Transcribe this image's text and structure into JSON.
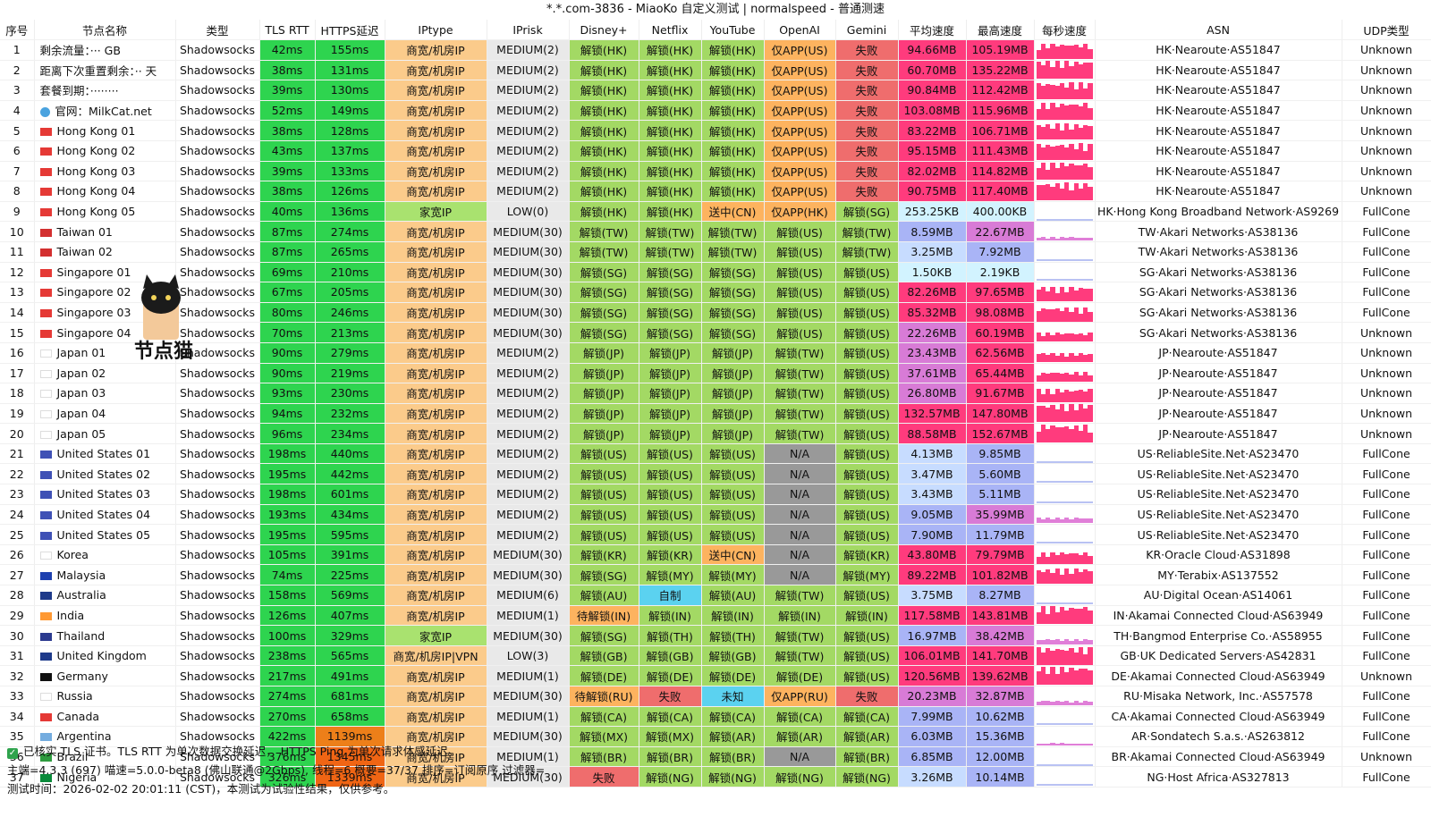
{
  "title": "*.*.com-3836 - MiaoKo 自定义测试 | normalspeed - 普通测速",
  "headers": [
    "序号",
    "节点名称",
    "类型",
    "TLS RTT",
    "HTTPS延迟",
    "IPtype",
    "IPrisk",
    "Disney+",
    "Netflix",
    "YouTube",
    "OpenAI",
    "Gemini",
    "平均速度",
    "最高速度",
    "每秒速度",
    "ASN",
    "UDP类型"
  ],
  "rows": [
    [
      "1",
      "剩余流量：··· GB",
      "Shadowsocks",
      "42ms",
      "155ms",
      "商宽/机房IP",
      "MEDIUM(2)",
      "解锁(HK)",
      "解锁(HK)",
      "解锁(HK)",
      "仅APP(US)",
      "失败",
      "94.66MB",
      "105.19MB",
      "",
      "HK·Nearoute·AS51847",
      "Unknown"
    ],
    [
      "2",
      "距离下次重置剩余：·· 天",
      "Shadowsocks",
      "38ms",
      "131ms",
      "商宽/机房IP",
      "MEDIUM(2)",
      "解锁(HK)",
      "解锁(HK)",
      "解锁(HK)",
      "仅APP(US)",
      "失败",
      "60.70MB",
      "135.22MB",
      "",
      "HK·Nearoute·AS51847",
      "Unknown"
    ],
    [
      "3",
      "套餐到期：········",
      "Shadowsocks",
      "39ms",
      "130ms",
      "商宽/机房IP",
      "MEDIUM(2)",
      "解锁(HK)",
      "解锁(HK)",
      "解锁(HK)",
      "仅APP(US)",
      "失败",
      "90.84MB",
      "112.42MB",
      "",
      "HK·Nearoute·AS51847",
      "Unknown"
    ],
    [
      "4",
      "官网：MilkCat.net",
      "Shadowsocks",
      "52ms",
      "149ms",
      "商宽/机房IP",
      "MEDIUM(2)",
      "解锁(HK)",
      "解锁(HK)",
      "解锁(HK)",
      "仅APP(US)",
      "失败",
      "103.08MB",
      "115.96MB",
      "",
      "HK·Nearoute·AS51847",
      "Unknown"
    ],
    [
      "5",
      "Hong Kong 01",
      "Shadowsocks",
      "38ms",
      "128ms",
      "商宽/机房IP",
      "MEDIUM(2)",
      "解锁(HK)",
      "解锁(HK)",
      "解锁(HK)",
      "仅APP(US)",
      "失败",
      "83.22MB",
      "106.71MB",
      "",
      "HK·Nearoute·AS51847",
      "Unknown"
    ],
    [
      "6",
      "Hong Kong 02",
      "Shadowsocks",
      "43ms",
      "137ms",
      "商宽/机房IP",
      "MEDIUM(2)",
      "解锁(HK)",
      "解锁(HK)",
      "解锁(HK)",
      "仅APP(US)",
      "失败",
      "95.15MB",
      "111.43MB",
      "",
      "HK·Nearoute·AS51847",
      "Unknown"
    ],
    [
      "7",
      "Hong Kong 03",
      "Shadowsocks",
      "39ms",
      "133ms",
      "商宽/机房IP",
      "MEDIUM(2)",
      "解锁(HK)",
      "解锁(HK)",
      "解锁(HK)",
      "仅APP(US)",
      "失败",
      "82.02MB",
      "114.82MB",
      "",
      "HK·Nearoute·AS51847",
      "Unknown"
    ],
    [
      "8",
      "Hong Kong 04",
      "Shadowsocks",
      "38ms",
      "126ms",
      "商宽/机房IP",
      "MEDIUM(2)",
      "解锁(HK)",
      "解锁(HK)",
      "解锁(HK)",
      "仅APP(US)",
      "失败",
      "90.75MB",
      "117.40MB",
      "",
      "HK·Nearoute·AS51847",
      "Unknown"
    ],
    [
      "9",
      "Hong Kong 05",
      "Shadowsocks",
      "40ms",
      "136ms",
      "家宽IP",
      "LOW(0)",
      "解锁(HK)",
      "解锁(HK)",
      "送中(CN)",
      "仅APP(HK)",
      "解锁(SG)",
      "253.25KB",
      "400.00KB",
      "",
      "HK·Hong Kong Broadband Network·AS9269",
      "FullCone"
    ],
    [
      "10",
      "Taiwan 01",
      "Shadowsocks",
      "87ms",
      "274ms",
      "商宽/机房IP",
      "MEDIUM(30)",
      "解锁(TW)",
      "解锁(TW)",
      "解锁(TW)",
      "解锁(US)",
      "解锁(TW)",
      "8.59MB",
      "22.67MB",
      "",
      "TW·Akari Networks·AS38136",
      "FullCone"
    ],
    [
      "11",
      "Taiwan 02",
      "Shadowsocks",
      "87ms",
      "265ms",
      "商宽/机房IP",
      "MEDIUM(30)",
      "解锁(TW)",
      "解锁(TW)",
      "解锁(TW)",
      "解锁(US)",
      "解锁(TW)",
      "3.25MB",
      "7.92MB",
      "",
      "TW·Akari Networks·AS38136",
      "FullCone"
    ],
    [
      "12",
      "Singapore 01",
      "Shadowsocks",
      "69ms",
      "210ms",
      "商宽/机房IP",
      "MEDIUM(30)",
      "解锁(SG)",
      "解锁(SG)",
      "解锁(SG)",
      "解锁(US)",
      "解锁(US)",
      "1.50KB",
      "2.19KB",
      "",
      "SG·Akari Networks·AS38136",
      "FullCone"
    ],
    [
      "13",
      "Singapore 02",
      "Shadowsocks",
      "67ms",
      "205ms",
      "商宽/机房IP",
      "MEDIUM(30)",
      "解锁(SG)",
      "解锁(SG)",
      "解锁(SG)",
      "解锁(US)",
      "解锁(US)",
      "82.26MB",
      "97.65MB",
      "",
      "SG·Akari Networks·AS38136",
      "FullCone"
    ],
    [
      "14",
      "Singapore 03",
      "Shadowsocks",
      "80ms",
      "246ms",
      "商宽/机房IP",
      "MEDIUM(30)",
      "解锁(SG)",
      "解锁(SG)",
      "解锁(SG)",
      "解锁(US)",
      "解锁(US)",
      "85.32MB",
      "98.08MB",
      "",
      "SG·Akari Networks·AS38136",
      "FullCone"
    ],
    [
      "15",
      "Singapore 04",
      "Shadowsocks",
      "70ms",
      "213ms",
      "商宽/机房IP",
      "MEDIUM(30)",
      "解锁(SG)",
      "解锁(SG)",
      "解锁(SG)",
      "解锁(US)",
      "解锁(US)",
      "22.26MB",
      "60.19MB",
      "",
      "SG·Akari Networks·AS38136",
      "Unknown"
    ],
    [
      "16",
      "Japan 01",
      "Shadowsocks",
      "90ms",
      "279ms",
      "商宽/机房IP",
      "MEDIUM(2)",
      "解锁(JP)",
      "解锁(JP)",
      "解锁(JP)",
      "解锁(TW)",
      "解锁(US)",
      "23.43MB",
      "62.56MB",
      "",
      "JP·Nearoute·AS51847",
      "Unknown"
    ],
    [
      "17",
      "Japan 02",
      "Shadowsocks",
      "90ms",
      "219ms",
      "商宽/机房IP",
      "MEDIUM(2)",
      "解锁(JP)",
      "解锁(JP)",
      "解锁(JP)",
      "解锁(TW)",
      "解锁(US)",
      "37.61MB",
      "65.44MB",
      "",
      "JP·Nearoute·AS51847",
      "Unknown"
    ],
    [
      "18",
      "Japan 03",
      "Shadowsocks",
      "93ms",
      "230ms",
      "商宽/机房IP",
      "MEDIUM(2)",
      "解锁(JP)",
      "解锁(JP)",
      "解锁(JP)",
      "解锁(TW)",
      "解锁(US)",
      "26.80MB",
      "91.67MB",
      "",
      "JP·Nearoute·AS51847",
      "Unknown"
    ],
    [
      "19",
      "Japan 04",
      "Shadowsocks",
      "94ms",
      "232ms",
      "商宽/机房IP",
      "MEDIUM(2)",
      "解锁(JP)",
      "解锁(JP)",
      "解锁(JP)",
      "解锁(TW)",
      "解锁(US)",
      "132.57MB",
      "147.80MB",
      "",
      "JP·Nearoute·AS51847",
      "Unknown"
    ],
    [
      "20",
      "Japan 05",
      "Shadowsocks",
      "96ms",
      "234ms",
      "商宽/机房IP",
      "MEDIUM(2)",
      "解锁(JP)",
      "解锁(JP)",
      "解锁(JP)",
      "解锁(TW)",
      "解锁(US)",
      "88.58MB",
      "152.67MB",
      "",
      "JP·Nearoute·AS51847",
      "Unknown"
    ],
    [
      "21",
      "United States 01",
      "Shadowsocks",
      "198ms",
      "440ms",
      "商宽/机房IP",
      "MEDIUM(2)",
      "解锁(US)",
      "解锁(US)",
      "解锁(US)",
      "N/A",
      "解锁(US)",
      "4.13MB",
      "9.85MB",
      "",
      "US·ReliableSite.Net·AS23470",
      "FullCone"
    ],
    [
      "22",
      "United States 02",
      "Shadowsocks",
      "195ms",
      "442ms",
      "商宽/机房IP",
      "MEDIUM(2)",
      "解锁(US)",
      "解锁(US)",
      "解锁(US)",
      "N/A",
      "解锁(US)",
      "3.47MB",
      "5.60MB",
      "",
      "US·ReliableSite.Net·AS23470",
      "FullCone"
    ],
    [
      "23",
      "United States 03",
      "Shadowsocks",
      "198ms",
      "601ms",
      "商宽/机房IP",
      "MEDIUM(2)",
      "解锁(US)",
      "解锁(US)",
      "解锁(US)",
      "N/A",
      "解锁(US)",
      "3.43MB",
      "5.11MB",
      "",
      "US·ReliableSite.Net·AS23470",
      "FullCone"
    ],
    [
      "24",
      "United States 04",
      "Shadowsocks",
      "193ms",
      "434ms",
      "商宽/机房IP",
      "MEDIUM(2)",
      "解锁(US)",
      "解锁(US)",
      "解锁(US)",
      "N/A",
      "解锁(US)",
      "9.05MB",
      "35.99MB",
      "",
      "US·ReliableSite.Net·AS23470",
      "FullCone"
    ],
    [
      "25",
      "United States 05",
      "Shadowsocks",
      "195ms",
      "595ms",
      "商宽/机房IP",
      "MEDIUM(2)",
      "解锁(US)",
      "解锁(US)",
      "解锁(US)",
      "N/A",
      "解锁(US)",
      "7.90MB",
      "11.79MB",
      "",
      "US·ReliableSite.Net·AS23470",
      "FullCone"
    ],
    [
      "26",
      "Korea",
      "Shadowsocks",
      "105ms",
      "391ms",
      "商宽/机房IP",
      "MEDIUM(30)",
      "解锁(KR)",
      "解锁(KR)",
      "送中(CN)",
      "N/A",
      "解锁(KR)",
      "43.80MB",
      "79.79MB",
      "",
      "KR·Oracle Cloud·AS31898",
      "FullCone"
    ],
    [
      "27",
      "Malaysia",
      "Shadowsocks",
      "74ms",
      "225ms",
      "商宽/机房IP",
      "MEDIUM(30)",
      "解锁(SG)",
      "解锁(MY)",
      "解锁(MY)",
      "N/A",
      "解锁(MY)",
      "89.22MB",
      "101.82MB",
      "",
      "MY·Terabix·AS137552",
      "FullCone"
    ],
    [
      "28",
      "Australia",
      "Shadowsocks",
      "158ms",
      "569ms",
      "商宽/机房IP",
      "MEDIUM(6)",
      "解锁(AU)",
      "自制",
      "解锁(AU)",
      "解锁(TW)",
      "解锁(US)",
      "3.75MB",
      "8.27MB",
      "",
      "AU·Digital Ocean·AS14061",
      "FullCone"
    ],
    [
      "29",
      "India",
      "Shadowsocks",
      "126ms",
      "407ms",
      "商宽/机房IP",
      "MEDIUM(1)",
      "待解锁(IN)",
      "解锁(IN)",
      "解锁(IN)",
      "解锁(IN)",
      "解锁(IN)",
      "117.58MB",
      "143.81MB",
      "",
      "IN·Akamai Connected Cloud·AS63949",
      "FullCone"
    ],
    [
      "30",
      "Thailand",
      "Shadowsocks",
      "100ms",
      "329ms",
      "家宽IP",
      "MEDIUM(30)",
      "解锁(SG)",
      "解锁(TH)",
      "解锁(TH)",
      "解锁(TW)",
      "解锁(US)",
      "16.97MB",
      "38.42MB",
      "",
      "TH·Bangmod Enterprise Co.·AS58955",
      "FullCone"
    ],
    [
      "31",
      "United Kingdom",
      "Shadowsocks",
      "238ms",
      "565ms",
      "商宽/机房IP|VPN",
      "LOW(3)",
      "解锁(GB)",
      "解锁(GB)",
      "解锁(GB)",
      "解锁(TW)",
      "解锁(US)",
      "106.01MB",
      "141.70MB",
      "",
      "GB·UK Dedicated Servers·AS42831",
      "FullCone"
    ],
    [
      "32",
      "Germany",
      "Shadowsocks",
      "217ms",
      "491ms",
      "商宽/机房IP",
      "MEDIUM(1)",
      "解锁(DE)",
      "解锁(DE)",
      "解锁(DE)",
      "解锁(DE)",
      "解锁(US)",
      "120.56MB",
      "139.62MB",
      "",
      "DE·Akamai Connected Cloud·AS63949",
      "Unknown"
    ],
    [
      "33",
      "Russia",
      "Shadowsocks",
      "274ms",
      "681ms",
      "商宽/机房IP",
      "MEDIUM(30)",
      "待解锁(RU)",
      "失败",
      "未知",
      "仅APP(RU)",
      "失败",
      "20.23MB",
      "32.87MB",
      "",
      "RU·Misaka Network, Inc.·AS57578",
      "FullCone"
    ],
    [
      "34",
      "Canada",
      "Shadowsocks",
      "270ms",
      "658ms",
      "商宽/机房IP",
      "MEDIUM(1)",
      "解锁(CA)",
      "解锁(CA)",
      "解锁(CA)",
      "解锁(CA)",
      "解锁(CA)",
      "7.99MB",
      "10.62MB",
      "",
      "CA·Akamai Connected Cloud·AS63949",
      "FullCone"
    ],
    [
      "35",
      "Argentina",
      "Shadowsocks",
      "422ms",
      "1139ms",
      "商宽/机房IP",
      "MEDIUM(30)",
      "解锁(MX)",
      "解锁(MX)",
      "解锁(AR)",
      "解锁(AR)",
      "解锁(AR)",
      "6.03MB",
      "15.36MB",
      "",
      "AR·Sondatech S.a.s.·AS263812",
      "FullCone"
    ],
    [
      "36",
      "Brazil",
      "Shadowsocks",
      "376ms",
      "1345ms",
      "商宽/机房IP",
      "MEDIUM(1)",
      "解锁(BR)",
      "解锁(BR)",
      "解锁(BR)",
      "N/A",
      "解锁(BR)",
      "6.85MB",
      "12.00MB",
      "",
      "BR·Akamai Connected Cloud·AS63949",
      "Unknown"
    ],
    [
      "37",
      "Nigeria",
      "Shadowsocks",
      "326ms",
      "1339ms",
      "商宽/机房IP",
      "MEDIUM(30)",
      "失败",
      "解锁(NG)",
      "解锁(NG)",
      "解锁(NG)",
      "解锁(NG)",
      "3.26MB",
      "10.14MB",
      "",
      "NG·Host Africa·AS327813",
      "FullCone"
    ]
  ],
  "flags": [
    "",
    "",
    "",
    "globe",
    "hk",
    "hk",
    "hk",
    "hk",
    "hk",
    "tw",
    "tw",
    "sg",
    "sg",
    "sg",
    "sg",
    "jp",
    "jp",
    "jp",
    "jp",
    "jp",
    "us",
    "us",
    "us",
    "us",
    "us",
    "kr",
    "my",
    "au",
    "in",
    "th",
    "gb",
    "de",
    "ru",
    "ca",
    "ar",
    "br",
    "ng"
  ],
  "footer": {
    "line1": "已核实 TLS 证书。TLS RTT 为单次数据交换延迟， HTTPS Ping 为单次请求体感延迟。",
    "line2": "主端=4.3.3 (697) 喵速=5.0.0-beta8 (佛山联通@2Gbps), 线程=6 概要=37/37 排序=订阅原序 过滤器=",
    "line3": "测试时间：2026-02-02 20:01:11 (CST)，本测试为试验性结果，仅供参考。"
  },
  "logo_text": "节点猫",
  "colors": {
    "hi": "#ff3b7d",
    "mid": "#d87bd6",
    "low": "#a9b4f6",
    "vlow": "#c7dcff",
    "tls": "#2ed44f",
    "unlock": "#a3d964",
    "fail": "#ef6d6d",
    "peach": "#fbcb8b"
  }
}
